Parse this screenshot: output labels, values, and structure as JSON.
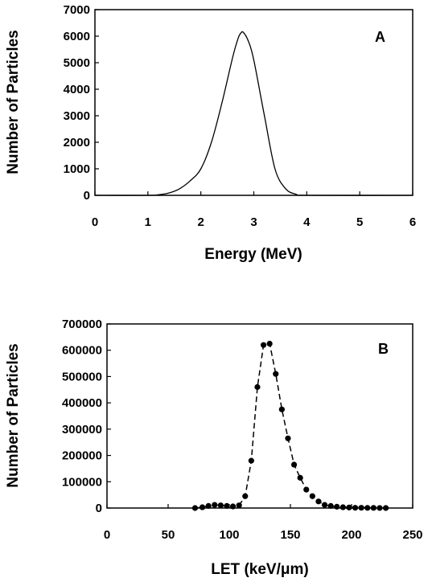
{
  "chart_data": [
    {
      "type": "line",
      "panel_label": "A",
      "xlabel": "Energy (MeV)",
      "ylabel": "Number of Particles",
      "xlim": [
        0,
        6
      ],
      "ylim": [
        0,
        7000
      ],
      "x_ticks": [
        "0",
        "1",
        "2",
        "3",
        "4",
        "5",
        "6"
      ],
      "y_ticks": [
        "0",
        "1000",
        "2000",
        "3000",
        "4000",
        "5000",
        "6000",
        "7000"
      ],
      "grid": false,
      "series": [
        {
          "x": [
            0.0,
            1.0,
            1.2,
            1.4,
            1.6,
            1.8,
            2.0,
            2.2,
            2.4,
            2.6,
            2.7,
            2.75,
            2.8,
            2.9,
            3.0,
            3.2,
            3.4,
            3.6,
            3.8,
            4.0,
            6.0
          ],
          "values": [
            0,
            0,
            20,
            90,
            250,
            550,
            1000,
            2000,
            3500,
            5200,
            5900,
            6100,
            6150,
            5800,
            5100,
            3000,
            1000,
            250,
            40,
            0,
            0
          ]
        }
      ]
    },
    {
      "type": "line",
      "panel_label": "B",
      "xlabel": "LET (keV/μm)",
      "ylabel": "Number of Particles",
      "xlim": [
        0,
        250
      ],
      "ylim": [
        0,
        700000
      ],
      "x_ticks": [
        "0",
        "50",
        "100",
        "150",
        "200",
        "250"
      ],
      "y_ticks": [
        "0",
        "100000",
        "200000",
        "300000",
        "400000",
        "500000",
        "600000",
        "700000"
      ],
      "grid": false,
      "line_style": "dashed",
      "markers": "filled-circle",
      "series": [
        {
          "x": [
            72,
            78,
            83,
            88,
            93,
            98,
            103,
            108,
            113,
            118,
            123,
            128,
            133,
            138,
            143,
            148,
            153,
            158,
            163,
            168,
            173,
            178,
            183,
            188,
            193,
            198,
            203,
            208,
            213,
            218,
            223,
            228
          ],
          "values": [
            0,
            3000,
            8000,
            12000,
            10000,
            8000,
            6000,
            10000,
            45000,
            180000,
            460000,
            620000,
            625000,
            510000,
            375000,
            265000,
            165000,
            115000,
            70000,
            45000,
            25000,
            12000,
            8000,
            5000,
            3000,
            2000,
            1000,
            1000,
            500,
            500,
            200,
            100
          ]
        }
      ]
    }
  ]
}
